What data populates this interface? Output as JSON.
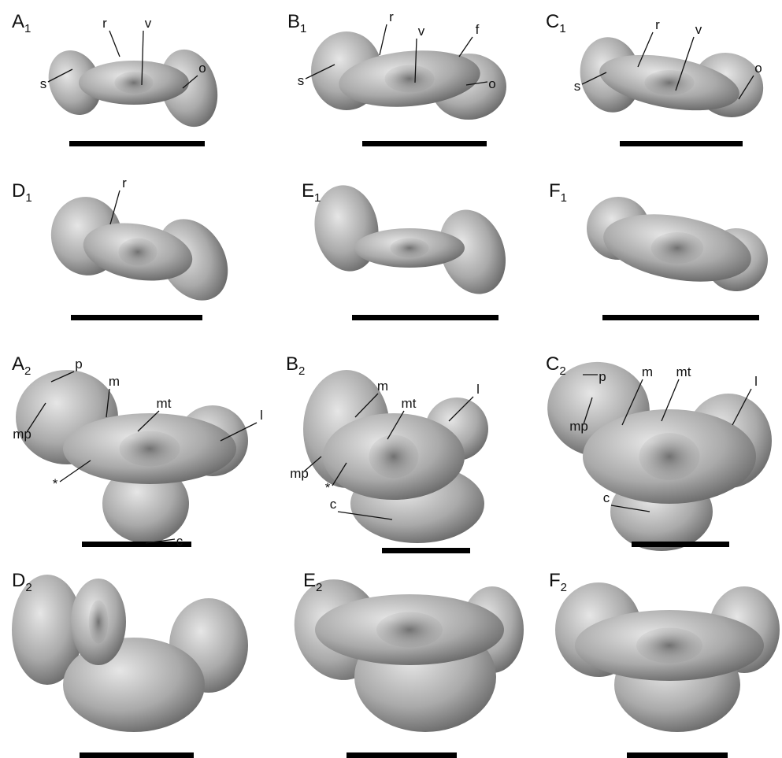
{
  "panels": [
    {
      "label": "A",
      "index": "1",
      "annotations": [
        "r",
        "v",
        "s",
        "o"
      ]
    },
    {
      "label": "B",
      "index": "1",
      "annotations": [
        "r",
        "v",
        "f",
        "s",
        "o"
      ]
    },
    {
      "label": "C",
      "index": "1",
      "annotations": [
        "r",
        "v",
        "s",
        "o"
      ]
    },
    {
      "label": "D",
      "index": "1",
      "annotations": [
        "r"
      ]
    },
    {
      "label": "E",
      "index": "1",
      "annotations": []
    },
    {
      "label": "F",
      "index": "1",
      "annotations": []
    },
    {
      "label": "A",
      "index": "2",
      "annotations": [
        "p",
        "m",
        "mt",
        "l",
        "mp",
        "*",
        "c"
      ]
    },
    {
      "label": "B",
      "index": "2",
      "annotations": [
        "m",
        "mt",
        "l",
        "mp",
        "*",
        "c"
      ]
    },
    {
      "label": "C",
      "index": "2",
      "annotations": [
        "p",
        "m",
        "mt",
        "l",
        "mp",
        "c"
      ]
    },
    {
      "label": "D",
      "index": "2",
      "annotations": []
    },
    {
      "label": "E",
      "index": "2",
      "annotations": []
    },
    {
      "label": "F",
      "index": "2",
      "annotations": []
    }
  ]
}
